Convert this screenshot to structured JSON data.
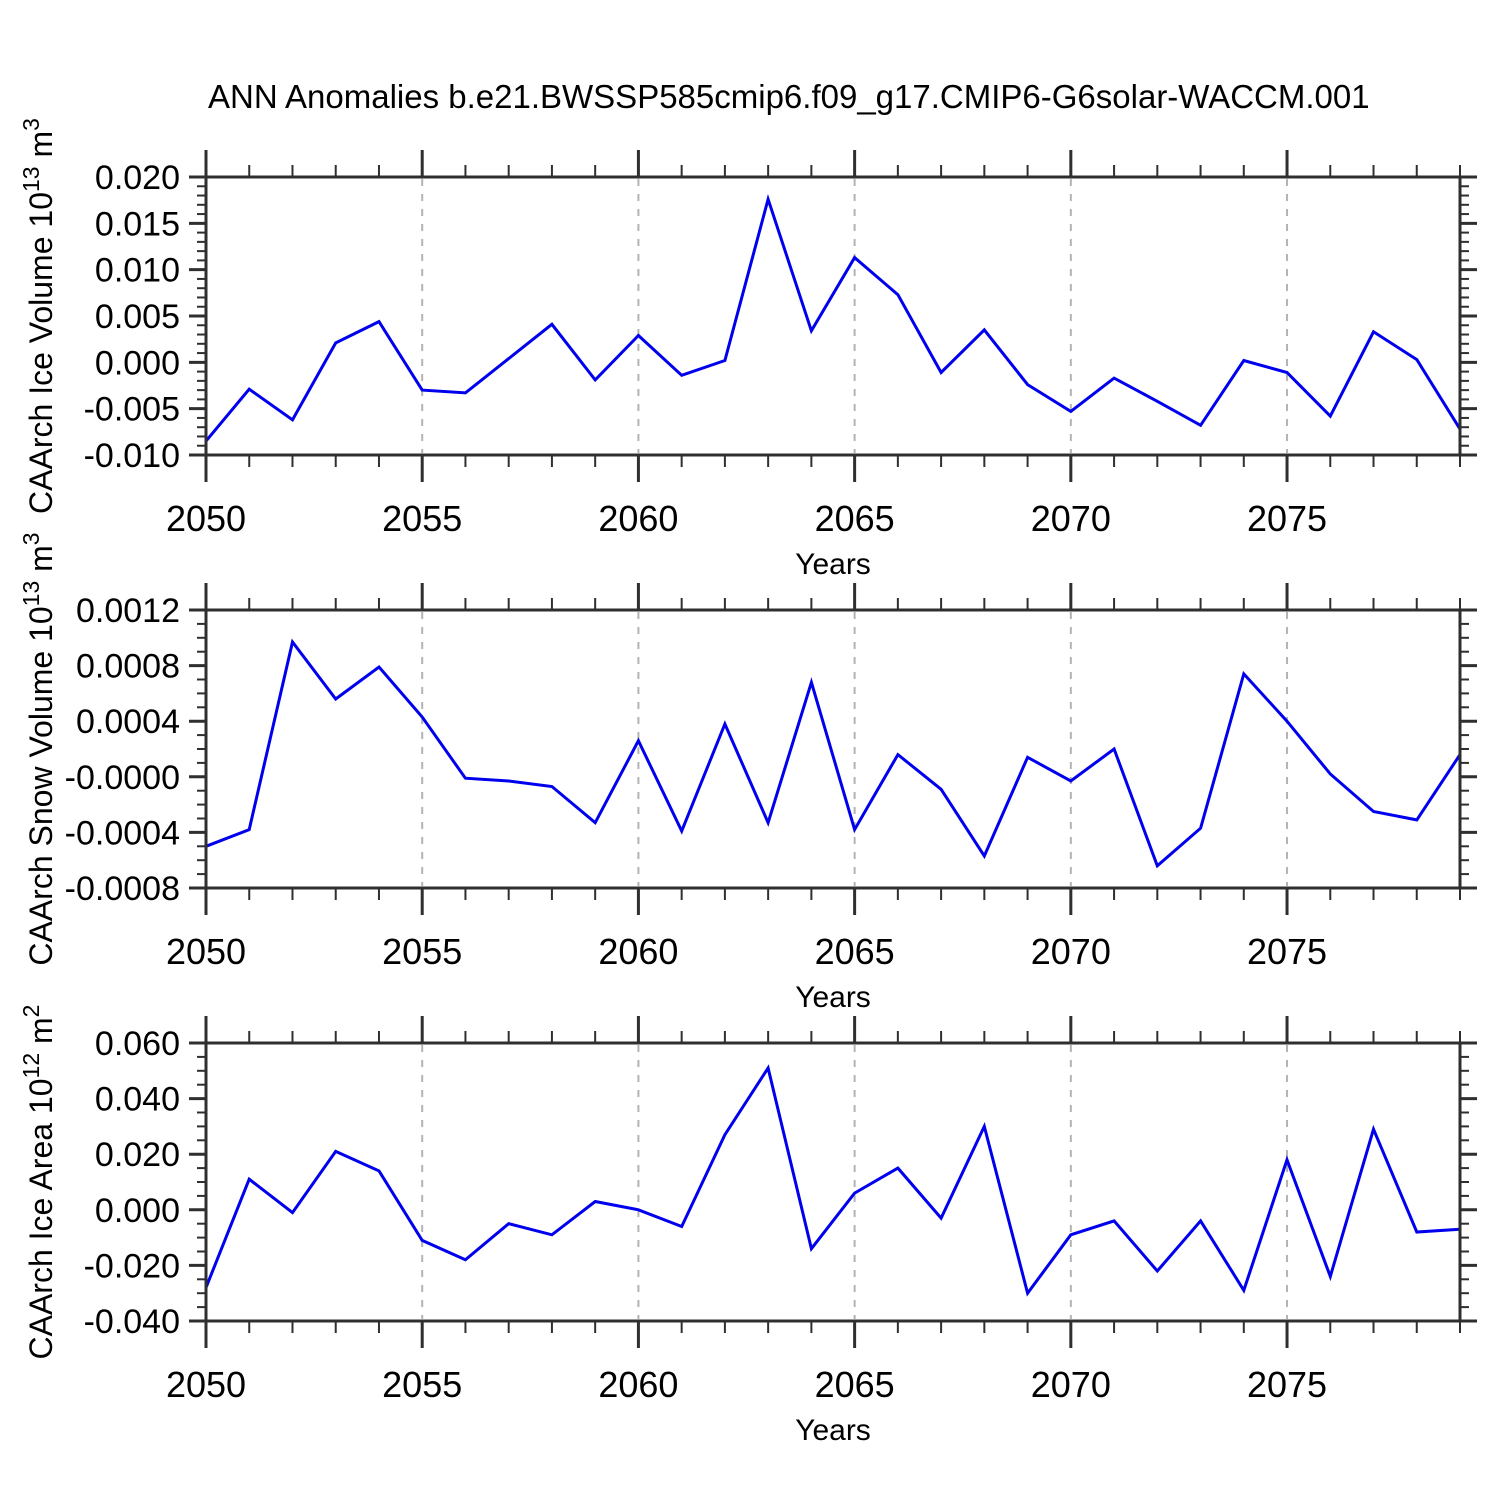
{
  "title": "ANN Anomalies b.e21.BWSSP585cmip6.f09_g17.CMIP6-G6solar-WACCM.001",
  "style": {
    "line_color": "#0000ee",
    "axis_color": "#2f2f2f",
    "grid_color": "#b3b3b3",
    "text_color": "#000000",
    "background": "#ffffff"
  },
  "chart_data": [
    {
      "type": "line",
      "name": "caarch-ice-volume",
      "title": "",
      "xlabel": "Years",
      "ylabel": "CAArch Ice Volume 10^13 m^3",
      "ylabel_parts": [
        {
          "text": "CAArch Ice Volume 10"
        },
        {
          "text": "13",
          "sup": true
        },
        {
          "text": " m"
        },
        {
          "text": "3",
          "sup": true
        }
      ],
      "legend": "none",
      "grid_dashed_x": [
        2055,
        2060,
        2065,
        2070,
        2075
      ],
      "xlim": [
        2050,
        2079
      ],
      "ylim": [
        -0.01,
        0.02
      ],
      "xtick_labels": [
        "2050",
        "2055",
        "2060",
        "2065",
        "2070",
        "2075"
      ],
      "xtick_values": [
        2050,
        2055,
        2060,
        2065,
        2070,
        2075
      ],
      "xminor_step": 1,
      "ytick_labels": [
        "0.020",
        "0.015",
        "0.010",
        "0.005",
        "0.000",
        "-0.005",
        "-0.010"
      ],
      "ytick_values": [
        0.02,
        0.015,
        0.01,
        0.005,
        0.0,
        -0.005,
        -0.01
      ],
      "yminor_step": 0.001,
      "x": [
        2050,
        2051,
        2052,
        2053,
        2054,
        2055,
        2056,
        2057,
        2058,
        2059,
        2060,
        2061,
        2062,
        2063,
        2064,
        2065,
        2066,
        2067,
        2068,
        2069,
        2070,
        2071,
        2072,
        2073,
        2074,
        2075,
        2076,
        2077,
        2078,
        2079
      ],
      "values": [
        -0.0085,
        -0.0029,
        -0.0062,
        0.0021,
        0.0044,
        -0.003,
        -0.0033,
        0.0004,
        0.0041,
        -0.0019,
        0.0029,
        -0.0014,
        0.0002,
        0.0176,
        0.0034,
        0.0113,
        0.0073,
        -0.0011,
        0.0035,
        -0.0024,
        -0.0053,
        -0.0017,
        -0.0042,
        -0.0068,
        0.0002,
        -0.0011,
        -0.0058,
        0.0033,
        0.0003,
        -0.0072
      ]
    },
    {
      "type": "line",
      "name": "caarch-snow-volume",
      "title": "",
      "xlabel": "Years",
      "ylabel": "CAArch Snow Volume 10^13 m^3",
      "ylabel_parts": [
        {
          "text": "CAArch Snow Volume 10"
        },
        {
          "text": "13",
          "sup": true
        },
        {
          "text": " m"
        },
        {
          "text": "3",
          "sup": true
        }
      ],
      "legend": "none",
      "grid_dashed_x": [
        2055,
        2060,
        2065,
        2070,
        2075
      ],
      "xlim": [
        2050,
        2079
      ],
      "ylim": [
        -0.0008,
        0.0012
      ],
      "xtick_labels": [
        "2050",
        "2055",
        "2060",
        "2065",
        "2070",
        "2075"
      ],
      "xtick_values": [
        2050,
        2055,
        2060,
        2065,
        2070,
        2075
      ],
      "xminor_step": 1,
      "ytick_labels": [
        "0.0012",
        "0.0008",
        "0.0004",
        "-0.0000",
        "-0.0004",
        "-0.0008"
      ],
      "ytick_values": [
        0.0012,
        0.0008,
        0.0004,
        0.0,
        -0.0004,
        -0.0008
      ],
      "yminor_step": 0.0001,
      "x": [
        2050,
        2051,
        2052,
        2053,
        2054,
        2055,
        2056,
        2057,
        2058,
        2059,
        2060,
        2061,
        2062,
        2063,
        2064,
        2065,
        2066,
        2067,
        2068,
        2069,
        2070,
        2071,
        2072,
        2073,
        2074,
        2075,
        2076,
        2077,
        2078,
        2079
      ],
      "values": [
        -0.0005,
        -0.00038,
        0.00097,
        0.00056,
        0.00079,
        0.00043,
        -1e-05,
        -3e-05,
        -7e-05,
        -0.00033,
        0.00026,
        -0.00039,
        0.00038,
        -0.00033,
        0.00068,
        -0.00038,
        0.00016,
        -9e-05,
        -0.00057,
        0.00014,
        -3e-05,
        0.0002,
        -0.00064,
        -0.00037,
        0.00074,
        0.0004,
        2e-05,
        -0.00025,
        -0.00031,
        0.00016
      ]
    },
    {
      "type": "line",
      "name": "caarch-ice-area",
      "title": "",
      "xlabel": "Years",
      "ylabel": "CAArch Ice Area 10^12 m^2",
      "ylabel_parts": [
        {
          "text": "CAArch Ice Area 10"
        },
        {
          "text": "12",
          "sup": true
        },
        {
          "text": " m"
        },
        {
          "text": "2",
          "sup": true
        }
      ],
      "legend": "none",
      "grid_dashed_x": [
        2055,
        2060,
        2065,
        2070,
        2075
      ],
      "xlim": [
        2050,
        2079
      ],
      "ylim": [
        -0.04,
        0.06
      ],
      "xtick_labels": [
        "2050",
        "2055",
        "2060",
        "2065",
        "2070",
        "2075"
      ],
      "xtick_values": [
        2050,
        2055,
        2060,
        2065,
        2070,
        2075
      ],
      "xminor_step": 1,
      "ytick_labels": [
        "0.060",
        "0.040",
        "0.020",
        "0.000",
        "-0.020",
        "-0.040"
      ],
      "ytick_values": [
        0.06,
        0.04,
        0.02,
        0.0,
        -0.02,
        -0.04
      ],
      "yminor_step": 0.005,
      "x": [
        2050,
        2051,
        2052,
        2053,
        2054,
        2055,
        2056,
        2057,
        2058,
        2059,
        2060,
        2061,
        2062,
        2063,
        2064,
        2065,
        2066,
        2067,
        2068,
        2069,
        2070,
        2071,
        2072,
        2073,
        2074,
        2075,
        2076,
        2077,
        2078,
        2079
      ],
      "values": [
        -0.028,
        0.011,
        -0.001,
        0.021,
        0.014,
        -0.011,
        -0.018,
        -0.005,
        -0.009,
        0.003,
        0.0,
        -0.006,
        0.027,
        0.051,
        -0.014,
        0.006,
        0.015,
        -0.003,
        0.03,
        -0.03,
        -0.009,
        -0.004,
        -0.022,
        -0.004,
        -0.029,
        0.018,
        -0.024,
        0.029,
        -0.008,
        -0.007
      ]
    }
  ]
}
